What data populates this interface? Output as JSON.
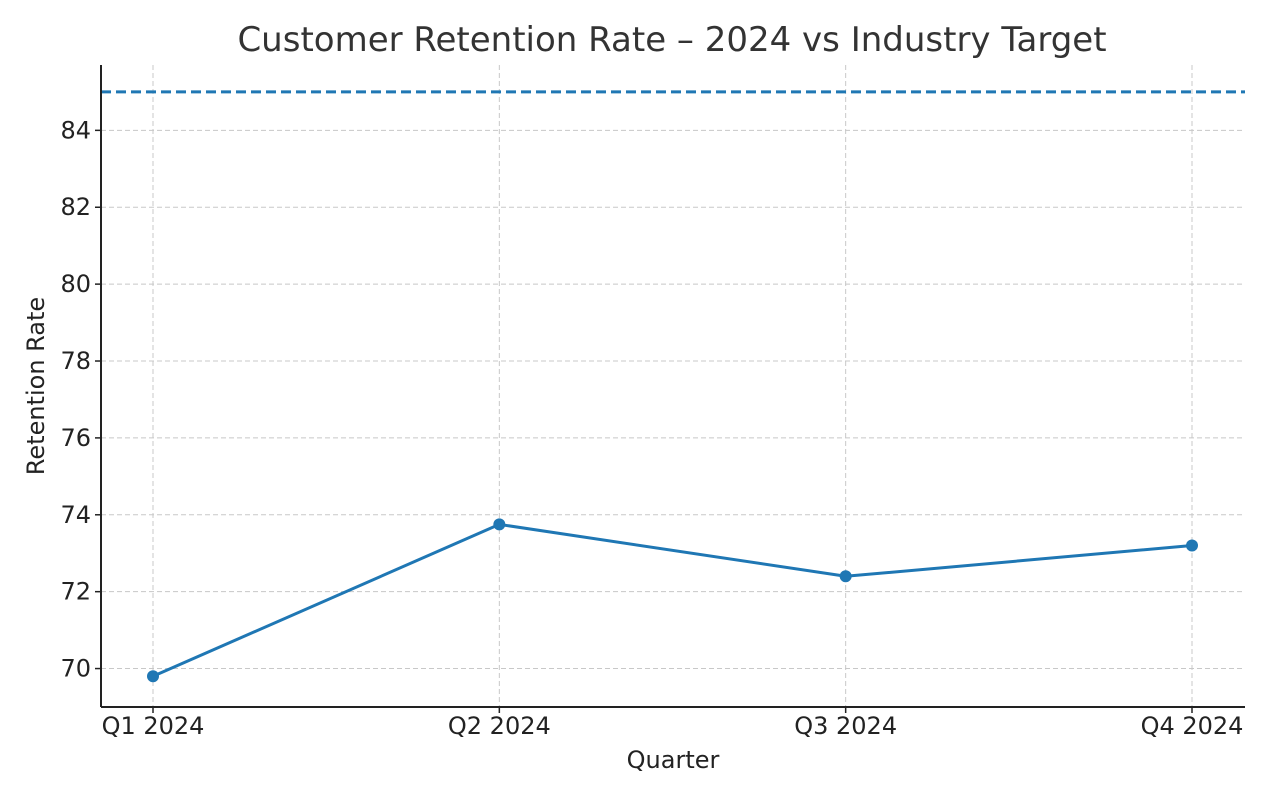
{
  "chart_data": {
    "type": "line",
    "title": "Customer Retention Rate – 2024 vs Industry Target",
    "xlabel": "Quarter",
    "ylabel": "Retention Rate",
    "categories": [
      "Q1 2024",
      "Q2 2024",
      "Q3 2024",
      "Q4 2024"
    ],
    "series": [
      {
        "values": [
          69.8,
          73.75,
          72.4,
          73.2
        ],
        "color": "#1f77b4"
      }
    ],
    "reference_line": {
      "value": 85,
      "color": "#1f77b4",
      "style": "dashed"
    },
    "ylim": [
      69,
      85.7
    ],
    "yticks": [
      70,
      72,
      74,
      76,
      78,
      80,
      82,
      84
    ],
    "grid": true
  }
}
